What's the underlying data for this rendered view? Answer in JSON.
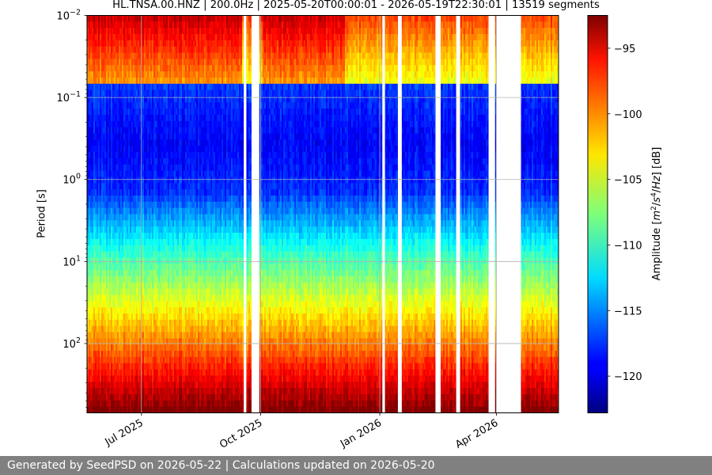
{
  "chart_data": {
    "type": "heatmap",
    "title": "HL.TNSA.00.HNZ | 200.0Hz | 2025-05-20T00:00:01 - 2026-05-19T22:30:01 | 13519 segments",
    "ylabel": "Period [s]",
    "y_scale": "log",
    "y_inverted": true,
    "ylim": [
      0.01,
      700
    ],
    "y_ticks": [
      {
        "value": 0.01,
        "base": "10",
        "exp": "−2"
      },
      {
        "value": 0.1,
        "base": "10",
        "exp": "−1"
      },
      {
        "value": 1,
        "base": "10",
        "exp": "0"
      },
      {
        "value": 10,
        "base": "10",
        "exp": "1"
      },
      {
        "value": 100,
        "base": "10",
        "exp": "2"
      }
    ],
    "xlim": [
      "2025-05-20",
      "2026-05-19"
    ],
    "x_ticks": [
      {
        "date": "2025-07-01",
        "label": "Jul 2025"
      },
      {
        "date": "2025-10-01",
        "label": "Oct 2025"
      },
      {
        "date": "2026-01-01",
        "label": "Jan 2026"
      },
      {
        "date": "2026-04-01",
        "label": "Apr 2026"
      }
    ],
    "grid": true,
    "colormap": "jet",
    "colorbar": {
      "label": "Amplitude [m2/s4/Hz] [dB]",
      "range": [
        -122.8,
        -92.5
      ],
      "ticks": [
        "−95",
        "−100",
        "−105",
        "−110",
        "−115",
        "−120"
      ]
    },
    "data_gaps": [
      [
        "2025-09-18",
        "2025-09-20"
      ],
      [
        "2025-09-24",
        "2025-09-30"
      ],
      [
        "2026-01-03",
        "2026-01-05"
      ],
      [
        "2026-01-15",
        "2026-01-18"
      ],
      [
        "2026-02-13",
        "2026-02-17"
      ],
      [
        "2026-03-01",
        "2026-03-04"
      ],
      [
        "2026-03-26",
        "2026-03-31"
      ],
      [
        "2026-04-01",
        "2026-04-20"
      ]
    ]
  },
  "footer": {
    "text": "Generated by SeedPSD on 2026-05-22 | Calculations updated on 2026-05-20"
  }
}
